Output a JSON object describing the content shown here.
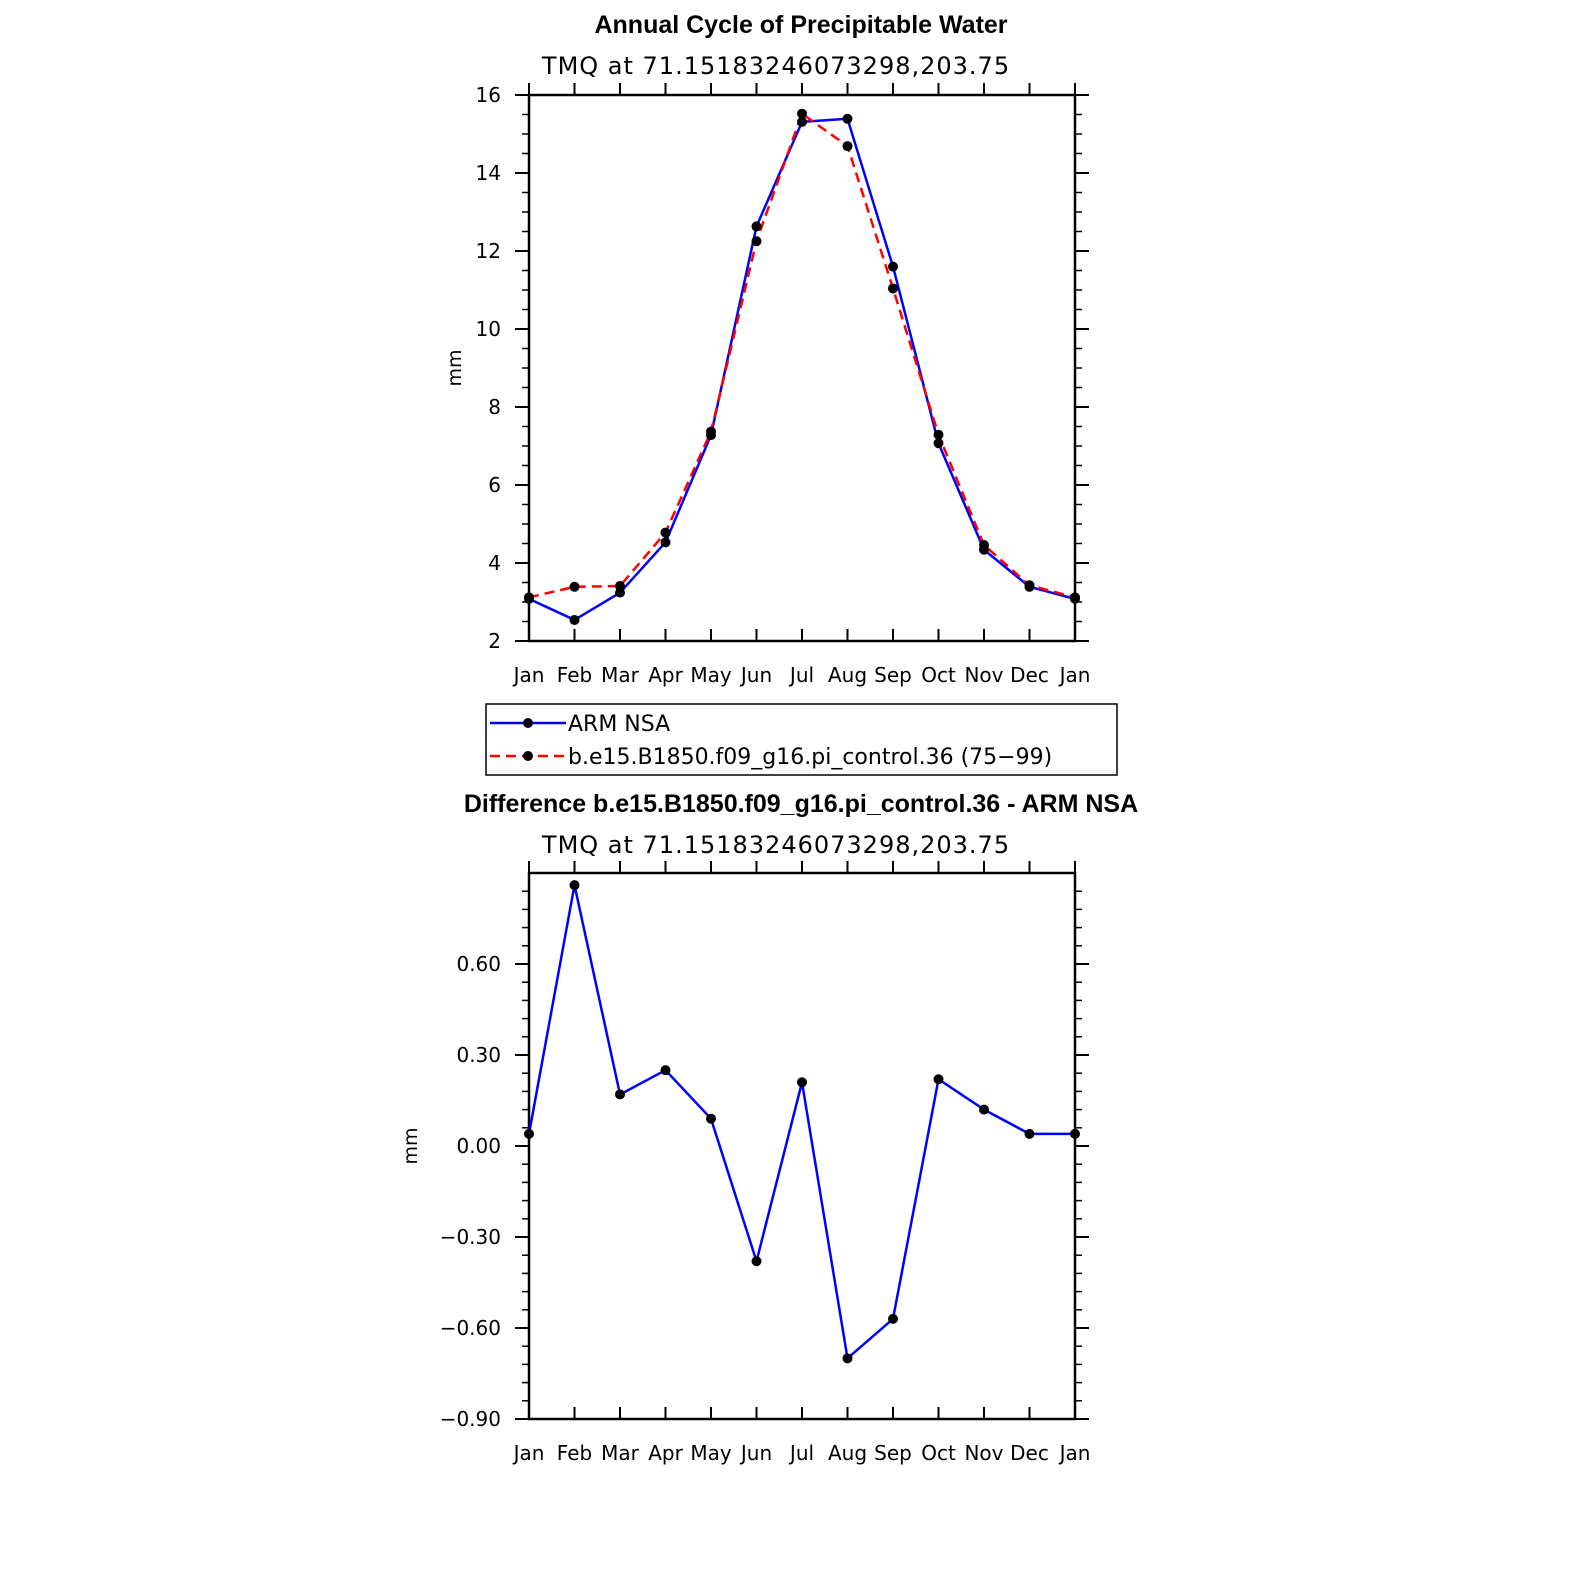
{
  "chart_data": [
    {
      "type": "line",
      "title": "Annual Cycle of Precipitable Water",
      "subtitle": "TMQ at 71.15183246073298,203.75",
      "ylabel": "mm",
      "xlabel": "",
      "categories": [
        "Jan",
        "Feb",
        "Mar",
        "Apr",
        "May",
        "Jun",
        "Jul",
        "Aug",
        "Sep",
        "Oct",
        "Nov",
        "Dec",
        "Jan"
      ],
      "ylim": [
        2,
        16
      ],
      "yticks": [
        2,
        4,
        6,
        8,
        10,
        12,
        14,
        16
      ],
      "yticklabels": [
        "2",
        "4",
        "6",
        "8",
        "10",
        "12",
        "14",
        "16"
      ],
      "series": [
        {
          "name": "ARM NSA",
          "color": "#0000ff",
          "dash": "solid",
          "values": [
            3.08,
            2.54,
            3.24,
            4.53,
            7.28,
            12.63,
            15.31,
            15.39,
            11.6,
            7.07,
            4.34,
            3.39,
            3.08
          ]
        },
        {
          "name": "b.e15.B1850.f09_g16.pi_control.36 (75−99)",
          "color": "#ff0000",
          "dash": "dashed",
          "values": [
            3.12,
            3.39,
            3.41,
            4.78,
            7.37,
            12.25,
            15.52,
            14.69,
            11.04,
            7.29,
            4.46,
            3.43,
            3.12
          ]
        }
      ],
      "legend": {
        "position": "below-plot",
        "entries": [
          "ARM NSA",
          "b.e15.B1850.f09_g16.pi_control.36 (75−99)"
        ]
      },
      "grid": false
    },
    {
      "type": "line",
      "title": "Difference b.e15.B1850.f09_g16.pi_control.36 - ARM NSA",
      "subtitle": "TMQ at 71.15183246073298,203.75",
      "ylabel": "mm",
      "xlabel": "",
      "categories": [
        "Jan",
        "Feb",
        "Mar",
        "Apr",
        "May",
        "Jun",
        "Jul",
        "Aug",
        "Sep",
        "Oct",
        "Nov",
        "Dec",
        "Jan"
      ],
      "ylim": [
        -0.9,
        0.9
      ],
      "yticks": [
        -0.9,
        -0.6,
        -0.3,
        0.0,
        0.3,
        0.6
      ],
      "yticklabels": [
        "−0.90",
        "−0.60",
        "−0.30",
        "0.00",
        "0.30",
        "0.60"
      ],
      "series": [
        {
          "color": "#0000ff",
          "dash": "solid",
          "values": [
            0.04,
            0.86,
            0.17,
            0.25,
            0.09,
            -0.38,
            0.21,
            -0.7,
            -0.57,
            0.22,
            0.12,
            0.04,
            0.04
          ]
        }
      ],
      "grid": false
    }
  ]
}
